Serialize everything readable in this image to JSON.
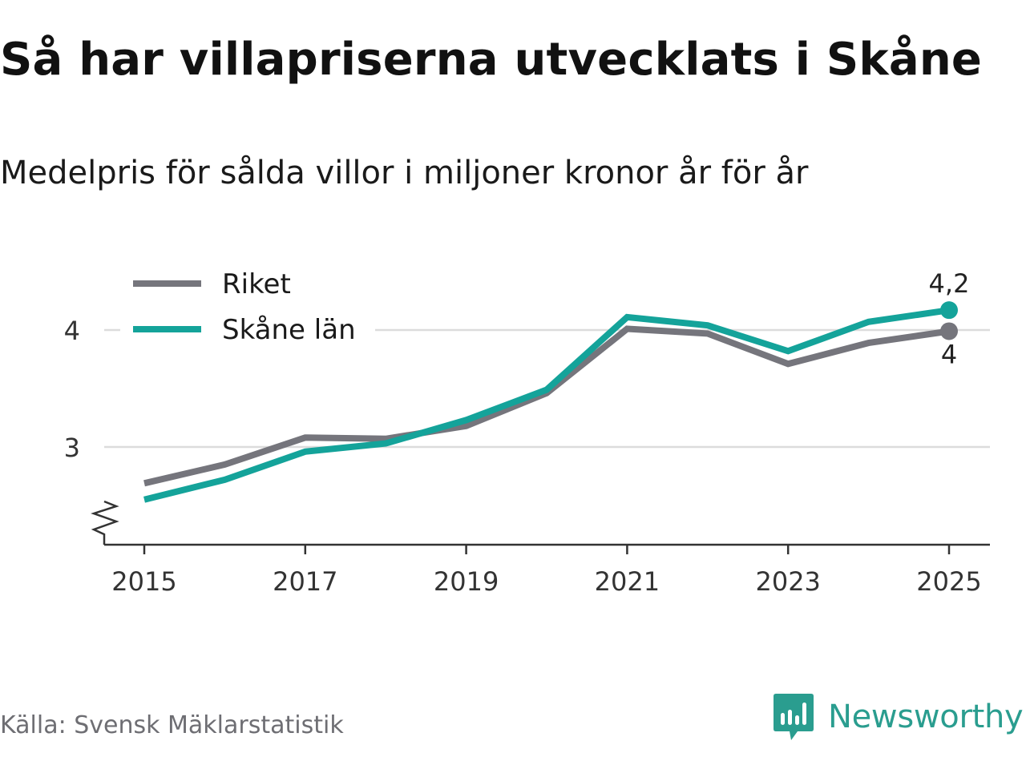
{
  "title": "Så har villapriserna utvecklats i Skåne",
  "subtitle": "Medelpris för sålda villor i miljoner kronor år för år",
  "source": "Källa: Svensk Mäklarstatistik",
  "brand": {
    "name": "Newsworthy",
    "icon": "newsworthy-logo-icon",
    "color": "#2a9d8f"
  },
  "chart_data": {
    "type": "line",
    "title": "Så har villapriserna utvecklats i Skåne",
    "subtitle": "Medelpris för sålda villor i miljoner kronor år för år",
    "xlabel": "",
    "ylabel": "",
    "x": [
      2015,
      2016,
      2017,
      2018,
      2019,
      2020,
      2021,
      2022,
      2023,
      2024,
      2025
    ],
    "xticks": [
      "2015",
      "2017",
      "2019",
      "2021",
      "2023",
      "2025"
    ],
    "xlim": [
      2014.75,
      2025.5
    ],
    "yticks": [
      3,
      4
    ],
    "ylim": [
      2.17,
      4.35
    ],
    "axis_break": true,
    "grid": "horizontal",
    "legend_position": "top-left",
    "series": [
      {
        "name": "Riket",
        "color": "#75757c",
        "values": [
          2.69,
          2.85,
          3.08,
          3.07,
          3.18,
          3.46,
          4.01,
          3.97,
          3.71,
          3.89,
          3.99
        ],
        "end_label": "4"
      },
      {
        "name": "Skåne län",
        "color": "#14a39a",
        "values": [
          2.55,
          2.72,
          2.96,
          3.03,
          3.23,
          3.49,
          4.11,
          4.04,
          3.82,
          4.07,
          4.17
        ],
        "end_label": "4,2"
      }
    ]
  }
}
